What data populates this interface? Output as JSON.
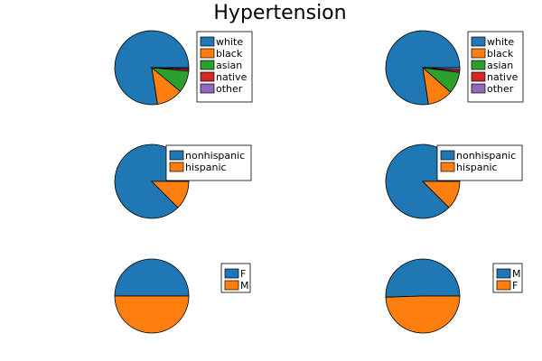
{
  "title": "Hypertension",
  "chart_data": [
    {
      "type": "pie",
      "categories": [
        "white",
        "black",
        "asian",
        "native",
        "other"
      ],
      "values": [
        0.775,
        0.115,
        0.095,
        0.01,
        0.005
      ],
      "colors": [
        "#1f77b4",
        "#ff7f0e",
        "#2ca02c",
        "#d62728",
        "#9467bd"
      ],
      "legend": "right"
    },
    {
      "type": "pie",
      "categories": [
        "white",
        "black",
        "asian",
        "native",
        "other"
      ],
      "values": [
        0.775,
        0.11,
        0.095,
        0.01,
        0.01
      ],
      "colors": [
        "#1f77b4",
        "#ff7f0e",
        "#2ca02c",
        "#d62728",
        "#9467bd"
      ],
      "legend": "right"
    },
    {
      "type": "pie",
      "categories": [
        "nonhispanic",
        "hispanic"
      ],
      "values": [
        0.875,
        0.125
      ],
      "colors": [
        "#1f77b4",
        "#ff7f0e"
      ],
      "legend": "top-right"
    },
    {
      "type": "pie",
      "categories": [
        "nonhispanic",
        "hispanic"
      ],
      "values": [
        0.875,
        0.125
      ],
      "colors": [
        "#1f77b4",
        "#ff7f0e"
      ],
      "legend": "top-right"
    },
    {
      "type": "pie",
      "categories": [
        "F",
        "M"
      ],
      "values": [
        0.5,
        0.5
      ],
      "colors": [
        "#1f77b4",
        "#ff7f0e"
      ],
      "legend": "right"
    },
    {
      "type": "pie",
      "categories": [
        "M",
        "F"
      ],
      "values": [
        0.505,
        0.495
      ],
      "colors": [
        "#1f77b4",
        "#ff7f0e"
      ],
      "legend": "right"
    }
  ]
}
